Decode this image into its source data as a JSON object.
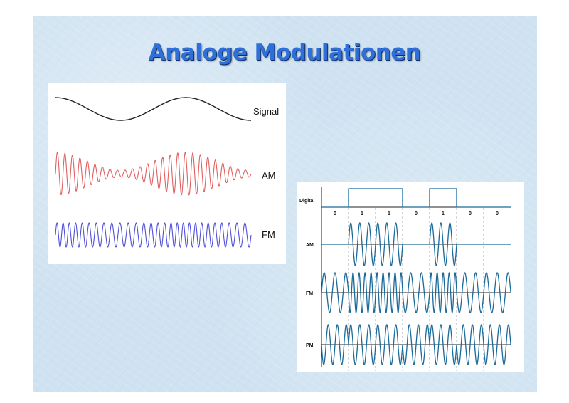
{
  "title": "Analoge Modulationen",
  "left_figure": {
    "labels": {
      "signal": "Signal",
      "am": "AM",
      "fm": "FM"
    },
    "colors": {
      "signal": "#222222",
      "am": "#e06060",
      "fm": "#5050d8"
    }
  },
  "right_figure": {
    "labels": {
      "digital": "Digital",
      "am": "AM",
      "fm": "FM",
      "pm": "PM"
    },
    "bits": [
      "0",
      "1",
      "1",
      "0",
      "1",
      "0",
      "0"
    ],
    "color": "#1a6a9a"
  }
}
